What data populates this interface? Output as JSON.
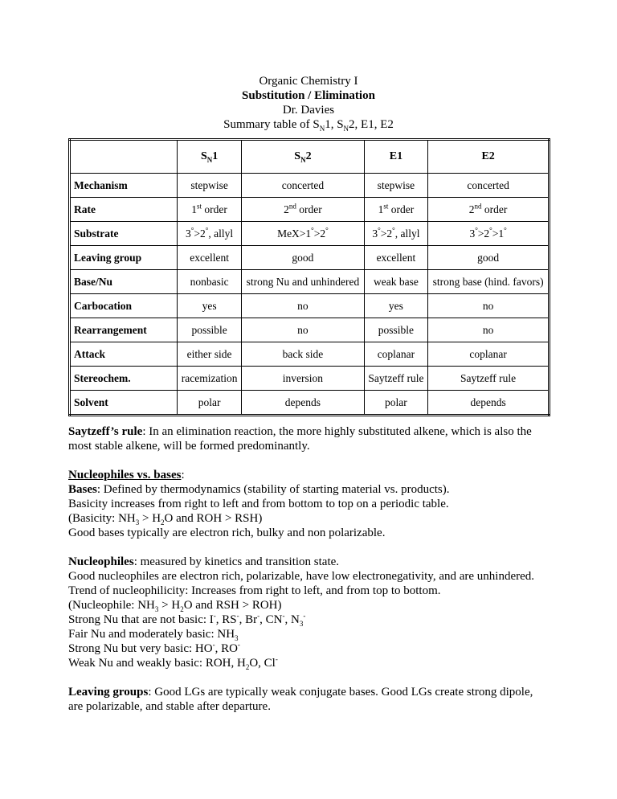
{
  "header": [
    [
      "Organic Chemistry I"
    ],
    [
      {
        "b": "Substitution / Elimination"
      }
    ],
    [
      "Dr. Davies"
    ],
    [
      "Summary table of S",
      {
        "sub": "N"
      },
      "1, S",
      {
        "sub": "N"
      },
      "2, E1, E2"
    ]
  ],
  "table": {
    "columns": [
      [
        "S",
        {
          "sub": "N"
        },
        "1"
      ],
      [
        "S",
        {
          "sub": "N"
        },
        "2"
      ],
      [
        "E1"
      ],
      [
        "E2"
      ]
    ],
    "rows": [
      [
        [
          "Mechanism"
        ],
        [
          "stepwise"
        ],
        [
          "concerted"
        ],
        [
          "stepwise"
        ],
        [
          "concerted"
        ]
      ],
      [
        [
          "Rate"
        ],
        [
          "1",
          {
            "sup": "st"
          },
          " order"
        ],
        [
          "2",
          {
            "sup": "nd"
          },
          " order"
        ],
        [
          "1",
          {
            "sup": "st"
          },
          " order"
        ],
        [
          "2",
          {
            "sup": "nd"
          },
          " order"
        ]
      ],
      [
        [
          "Substrate"
        ],
        [
          "3",
          {
            "sup": "°"
          },
          ">2",
          {
            "sup": "°"
          },
          ", allyl"
        ],
        [
          "MeX>1",
          {
            "sup": "°"
          },
          ">2",
          {
            "sup": "°"
          }
        ],
        [
          "3",
          {
            "sup": "°"
          },
          ">2",
          {
            "sup": "°"
          },
          ", allyl"
        ],
        [
          "3",
          {
            "sup": "°"
          },
          ">2",
          {
            "sup": "°"
          },
          ">1",
          {
            "sup": "°"
          }
        ]
      ],
      [
        [
          "Leaving group"
        ],
        [
          "excellent"
        ],
        [
          "good"
        ],
        [
          "excellent"
        ],
        [
          "good"
        ]
      ],
      [
        [
          "Base/Nu"
        ],
        [
          "nonbasic"
        ],
        [
          "strong Nu and unhindered"
        ],
        [
          "weak base"
        ],
        [
          "strong base (hind. favors)"
        ]
      ],
      [
        [
          "Carbocation"
        ],
        [
          "yes"
        ],
        [
          "no"
        ],
        [
          "yes"
        ],
        [
          "no"
        ]
      ],
      [
        [
          "Rearrangement"
        ],
        [
          "possible"
        ],
        [
          "no"
        ],
        [
          "possible"
        ],
        [
          "no"
        ]
      ],
      [
        [
          "Attack"
        ],
        [
          "either side"
        ],
        [
          "back side"
        ],
        [
          "coplanar"
        ],
        [
          "coplanar"
        ]
      ],
      [
        [
          "Stereochem."
        ],
        [
          "racemization"
        ],
        [
          "inversion"
        ],
        [
          "Saytzeff rule"
        ],
        [
          "Saytzeff rule"
        ]
      ],
      [
        [
          "Solvent"
        ],
        [
          "polar"
        ],
        [
          "depends"
        ],
        [
          "polar"
        ],
        [
          "depends"
        ]
      ]
    ]
  },
  "sections": [
    [
      [
        {
          "b": "Saytzeff’s rule"
        },
        ": In an elimination reaction, the more highly substituted alkene, which is also the most stable alkene, will be formed predominantly."
      ]
    ],
    [
      [
        {
          "bu": "Nucleophiles vs. bases"
        },
        ":"
      ],
      [
        {
          "b": "Bases"
        },
        ": Defined by thermodynamics (stability of starting material vs. products)."
      ],
      [
        "Basicity increases from right to left and from bottom to top on a periodic table."
      ],
      [
        "(Basicity: NH",
        {
          "sub": "3"
        },
        " > H",
        {
          "sub": "2"
        },
        "O and ROH > RSH)"
      ],
      [
        "Good bases typically are electron rich, bulky and non polarizable."
      ]
    ],
    [
      [
        {
          "b": "Nucleophiles"
        },
        ": measured by kinetics and transition state."
      ],
      [
        "Good nucleophiles are electron rich, polarizable, have low electronegativity, and are unhindered."
      ],
      [
        "Trend of nucleophilicity: Increases from right to left, and from top to bottom."
      ],
      [
        "(Nucleophile: NH",
        {
          "sub": "3"
        },
        " > H",
        {
          "sub": "2"
        },
        "O and RSH > ROH)"
      ],
      [
        "Strong Nu that are not basic: I",
        {
          "sup": "-"
        },
        ", RS",
        {
          "sup": "-"
        },
        ", Br",
        {
          "sup": "-"
        },
        ", CN",
        {
          "sup": "-"
        },
        ", N",
        {
          "sub": "3"
        },
        {
          "sup": "-"
        }
      ],
      [
        "Fair Nu and moderately basic: NH",
        {
          "sub": "3"
        }
      ],
      [
        "Strong Nu but very basic: HO",
        {
          "sup": "-"
        },
        ", RO",
        {
          "sup": "-"
        }
      ],
      [
        "Weak Nu and weakly basic: ROH, H",
        {
          "sub": "2"
        },
        "O, Cl",
        {
          "sup": "-"
        }
      ]
    ],
    [
      [
        {
          "b": "Leaving groups"
        },
        ": Good LGs are typically weak conjugate bases.  Good LGs create strong dipole, are polarizable, and stable after departure."
      ]
    ]
  ]
}
